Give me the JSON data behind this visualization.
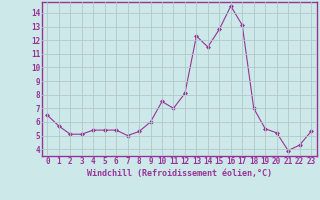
{
  "x": [
    0,
    1,
    2,
    3,
    4,
    5,
    6,
    7,
    8,
    9,
    10,
    11,
    12,
    13,
    14,
    15,
    16,
    17,
    18,
    19,
    20,
    21,
    22,
    23
  ],
  "y": [
    6.5,
    5.7,
    5.1,
    5.1,
    5.4,
    5.4,
    5.4,
    5.0,
    5.3,
    6.0,
    7.5,
    7.0,
    8.1,
    12.3,
    11.5,
    12.8,
    14.5,
    13.1,
    7.0,
    5.5,
    5.2,
    3.9,
    4.3,
    5.3
  ],
  "line_color": "#993399",
  "marker": "D",
  "marker_size": 2.0,
  "bg_color": "#cce8e8",
  "grid_color": "#b0c8c8",
  "xlabel": "Windchill (Refroidissement éolien,°C)",
  "ylabel_ticks": [
    4,
    5,
    6,
    7,
    8,
    9,
    10,
    11,
    12,
    13,
    14
  ],
  "xlim": [
    -0.5,
    23.5
  ],
  "ylim": [
    3.5,
    14.8
  ],
  "xtick_labels": [
    "0",
    "1",
    "2",
    "3",
    "4",
    "5",
    "6",
    "7",
    "8",
    "9",
    "10",
    "11",
    "12",
    "13",
    "14",
    "15",
    "16",
    "17",
    "18",
    "19",
    "20",
    "21",
    "22",
    "23"
  ],
  "axis_color": "#993399",
  "tick_color": "#993399",
  "label_color": "#993399",
  "spine_color": "#993399",
  "font_family": "monospace",
  "tick_fontsize": 5.5,
  "xlabel_fontsize": 6.0
}
